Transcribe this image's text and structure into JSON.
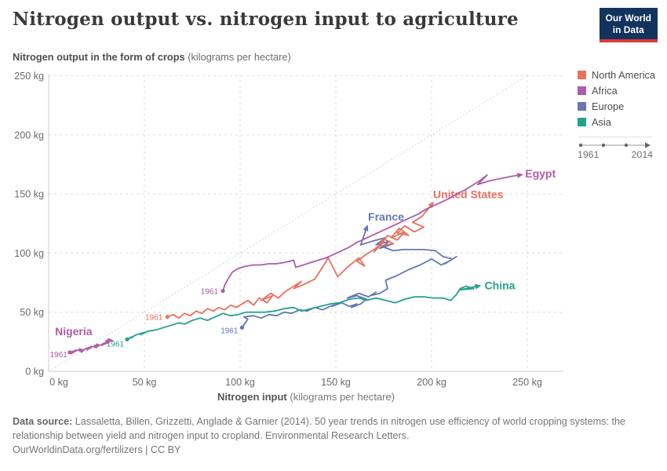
{
  "header": {
    "title": "Nitrogen output vs. nitrogen input to agriculture",
    "logo": {
      "line1": "Our World",
      "line2": "in Data",
      "bg_color": "#12335E",
      "bar_color": "#DC3A34"
    }
  },
  "subtitle": {
    "bold": "Nitrogen output in the form of crops",
    "rest": " (kilograms per hectare)"
  },
  "legend": {
    "items": [
      {
        "label": "North America",
        "color": "#E8705F"
      },
      {
        "label": "Africa",
        "color": "#AF5CA9"
      },
      {
        "label": "Europe",
        "color": "#6577B3"
      },
      {
        "label": "Asia",
        "color": "#23A18D"
      }
    ],
    "timeline": {
      "start": "1961",
      "end": "2014"
    }
  },
  "chart_data": {
    "type": "line",
    "title": "Nitrogen output vs. nitrogen input to agriculture",
    "xlabel_bold": "Nitrogen input",
    "xlabel_rest": " (kilograms per hectare)",
    "ylabel": "Nitrogen output in the form of crops (kilograms per hectare)",
    "tick_suffix": " kg",
    "x_ticks": [
      0,
      50,
      100,
      150,
      200,
      250
    ],
    "y_ticks": [
      0,
      50,
      100,
      150,
      200,
      250
    ],
    "xlim": [
      0,
      269
    ],
    "ylim": [
      0,
      251
    ],
    "grid": true,
    "identity_line": true,
    "year_range": [
      "1961",
      "2014"
    ],
    "series": [
      {
        "name": "France",
        "region": "Europe",
        "color": "#6577B3",
        "start_year": "1961",
        "name_offset": {
          "dx": 2,
          "dy": -10
        },
        "start_offset": {
          "dx": -5,
          "dy": 7
        },
        "points": [
          [
            101,
            37
          ],
          [
            104,
            44
          ],
          [
            102,
            46
          ],
          [
            107,
            47
          ],
          [
            111,
            45
          ],
          [
            115,
            48
          ],
          [
            119,
            47
          ],
          [
            123,
            50
          ],
          [
            127,
            49
          ],
          [
            131,
            52
          ],
          [
            135,
            51
          ],
          [
            139,
            54
          ],
          [
            143,
            52
          ],
          [
            147,
            55
          ],
          [
            151,
            57
          ],
          [
            148,
            55
          ],
          [
            153,
            58
          ],
          [
            157,
            55
          ],
          [
            161,
            57
          ],
          [
            158,
            54
          ],
          [
            163,
            57
          ],
          [
            166,
            61
          ],
          [
            161,
            64
          ],
          [
            156,
            62
          ],
          [
            162,
            66
          ],
          [
            167,
            63
          ],
          [
            171,
            67
          ],
          [
            168,
            64
          ],
          [
            173,
            66
          ],
          [
            177,
            70
          ],
          [
            176,
            77
          ],
          [
            182,
            81
          ],
          [
            188,
            86
          ],
          [
            194,
            90
          ],
          [
            200,
            95
          ],
          [
            205,
            90
          ],
          [
            209,
            93
          ],
          [
            213,
            97
          ],
          [
            207,
            91
          ],
          [
            211,
            95
          ],
          [
            206,
            97
          ],
          [
            202,
            102
          ],
          [
            196,
            103
          ],
          [
            190,
            103
          ],
          [
            185,
            103
          ],
          [
            180,
            102
          ],
          [
            175,
            105
          ],
          [
            180,
            108
          ],
          [
            173,
            104
          ],
          [
            178,
            110
          ],
          [
            171,
            107
          ],
          [
            176,
            113
          ],
          [
            169,
            110
          ],
          [
            163,
            107
          ],
          [
            166,
            121
          ]
        ]
      },
      {
        "name": "United States",
        "region": "North America",
        "color": "#E8705F",
        "start_year": "1961",
        "name_offset": {
          "dx": 2,
          "dy": -8
        },
        "start_offset": {
          "dx": -6,
          "dy": 4
        },
        "points": [
          [
            62,
            46
          ],
          [
            65,
            48
          ],
          [
            68,
            45
          ],
          [
            71,
            49
          ],
          [
            74,
            47
          ],
          [
            77,
            51
          ],
          [
            80,
            49
          ],
          [
            83,
            53
          ],
          [
            86,
            51
          ],
          [
            89,
            54
          ],
          [
            92,
            52
          ],
          [
            95,
            56
          ],
          [
            98,
            54
          ],
          [
            101,
            57
          ],
          [
            104,
            60
          ],
          [
            107,
            56
          ],
          [
            110,
            62
          ],
          [
            114,
            58
          ],
          [
            117,
            64
          ],
          [
            111,
            60
          ],
          [
            116,
            66
          ],
          [
            120,
            62
          ],
          [
            124,
            68
          ],
          [
            128,
            72
          ],
          [
            132,
            76
          ],
          [
            128,
            70
          ],
          [
            134,
            74
          ],
          [
            139,
            78
          ],
          [
            143,
            88
          ],
          [
            146,
            96
          ],
          [
            151,
            80
          ],
          [
            156,
            88
          ],
          [
            162,
            96
          ],
          [
            165,
            89
          ],
          [
            161,
            93
          ],
          [
            166,
            99
          ],
          [
            170,
            103
          ],
          [
            174,
            108
          ],
          [
            170,
            101
          ],
          [
            175,
            112
          ],
          [
            180,
            108
          ],
          [
            173,
            106
          ],
          [
            177,
            115
          ],
          [
            182,
            111
          ],
          [
            186,
            118
          ],
          [
            179,
            113
          ],
          [
            183,
            121
          ],
          [
            188,
            115
          ],
          [
            182,
            117
          ],
          [
            186,
            123
          ],
          [
            191,
            118
          ],
          [
            196,
            122
          ],
          [
            190,
            126
          ],
          [
            195,
            131
          ],
          [
            200,
            141
          ]
        ]
      },
      {
        "name": "China",
        "region": "Asia",
        "color": "#23A18D",
        "start_year": "1961",
        "name_offset": {
          "dx": 9,
          "dy": 4
        },
        "start_offset": {
          "dx": -4,
          "dy": 9
        },
        "points": [
          [
            41,
            27
          ],
          [
            44,
            29
          ],
          [
            42,
            28
          ],
          [
            46,
            31
          ],
          [
            50,
            33
          ],
          [
            48,
            31
          ],
          [
            52,
            34
          ],
          [
            56,
            35
          ],
          [
            60,
            37
          ],
          [
            64,
            39
          ],
          [
            68,
            41
          ],
          [
            71,
            40
          ],
          [
            75,
            43
          ],
          [
            79,
            45
          ],
          [
            83,
            43
          ],
          [
            87,
            46
          ],
          [
            91,
            49
          ],
          [
            95,
            47
          ],
          [
            99,
            48
          ],
          [
            103,
            50
          ],
          [
            108,
            50
          ],
          [
            113,
            50
          ],
          [
            118,
            51
          ],
          [
            123,
            53
          ],
          [
            128,
            54
          ],
          [
            132,
            51
          ],
          [
            137,
            53
          ],
          [
            142,
            55
          ],
          [
            147,
            57
          ],
          [
            152,
            58
          ],
          [
            157,
            61
          ],
          [
            162,
            62
          ],
          [
            166,
            60
          ],
          [
            171,
            62
          ],
          [
            176,
            60
          ],
          [
            181,
            58
          ],
          [
            186,
            61
          ],
          [
            191,
            63
          ],
          [
            196,
            63
          ],
          [
            201,
            62
          ],
          [
            206,
            62
          ],
          [
            210,
            60
          ],
          [
            213,
            65
          ],
          [
            215,
            70
          ],
          [
            218,
            72
          ],
          [
            222,
            70
          ],
          [
            215,
            69
          ],
          [
            224,
            72
          ]
        ]
      },
      {
        "name": "Nigeria",
        "region": "Africa",
        "color": "#AF5CA9",
        "start_year": "1961",
        "name_offset": {
          "dx": -70,
          "dy": -7
        },
        "start_offset": {
          "dx": -3,
          "dy": 6
        },
        "points": [
          [
            11,
            16
          ],
          [
            13,
            17
          ],
          [
            12,
            15
          ],
          [
            14,
            18
          ],
          [
            13,
            16
          ],
          [
            15,
            18
          ],
          [
            17,
            17
          ],
          [
            16,
            19
          ],
          [
            18,
            18
          ],
          [
            17,
            16
          ],
          [
            19,
            19
          ],
          [
            21,
            20
          ],
          [
            20,
            18
          ],
          [
            22,
            21
          ],
          [
            21,
            19
          ],
          [
            23,
            21
          ],
          [
            25,
            20
          ],
          [
            24,
            22
          ],
          [
            26,
            21
          ],
          [
            25,
            23
          ],
          [
            27,
            22
          ],
          [
            29,
            24
          ],
          [
            28,
            22
          ],
          [
            30,
            25
          ],
          [
            29,
            23
          ],
          [
            31,
            24
          ],
          [
            30,
            26
          ],
          [
            32,
            26
          ]
        ]
      },
      {
        "name": "Egypt",
        "region": "Africa",
        "color": "#AF5CA9",
        "start_year": "1961",
        "name_offset": {
          "dx": 7,
          "dy": 3
        },
        "start_offset": {
          "dx": -6,
          "dy": 4
        },
        "points": [
          [
            91,
            68
          ],
          [
            92,
            73
          ],
          [
            94,
            79
          ],
          [
            96,
            84
          ],
          [
            99,
            87
          ],
          [
            103,
            89
          ],
          [
            107,
            90
          ],
          [
            111,
            90
          ],
          [
            115,
            91
          ],
          [
            119,
            91
          ],
          [
            123,
            92
          ],
          [
            126,
            93
          ],
          [
            128,
            94
          ],
          [
            129,
            88
          ],
          [
            133,
            90
          ],
          [
            137,
            92
          ],
          [
            141,
            94
          ],
          [
            145,
            96
          ],
          [
            149,
            99
          ],
          [
            153,
            102
          ],
          [
            157,
            105
          ],
          [
            161,
            109
          ],
          [
            165,
            112
          ],
          [
            169,
            115
          ],
          [
            173,
            118
          ],
          [
            177,
            121
          ],
          [
            181,
            124
          ],
          [
            185,
            127
          ],
          [
            189,
            130
          ],
          [
            193,
            133
          ],
          [
            197,
            137
          ],
          [
            201,
            140
          ],
          [
            205,
            143
          ],
          [
            209,
            146
          ],
          [
            213,
            150
          ],
          [
            217,
            153
          ],
          [
            221,
            157
          ],
          [
            225,
            161
          ],
          [
            229,
            166
          ],
          [
            224,
            158
          ],
          [
            230,
            161
          ],
          [
            236,
            163
          ],
          [
            242,
            165
          ],
          [
            246,
            166
          ]
        ]
      }
    ]
  },
  "footer": {
    "source_label": "Data source:",
    "source_text": " Lassaletta, Billen, Grizzetti, Anglade & Garnier (2014). 50 year trends in nitrogen use efficiency of world cropping systems: the relationship between yield and nitrogen input to cropland. Environmental Research Letters.",
    "link": "OurWorldinData.org/fertilizers",
    "separator": " | ",
    "license": "CC BY"
  }
}
